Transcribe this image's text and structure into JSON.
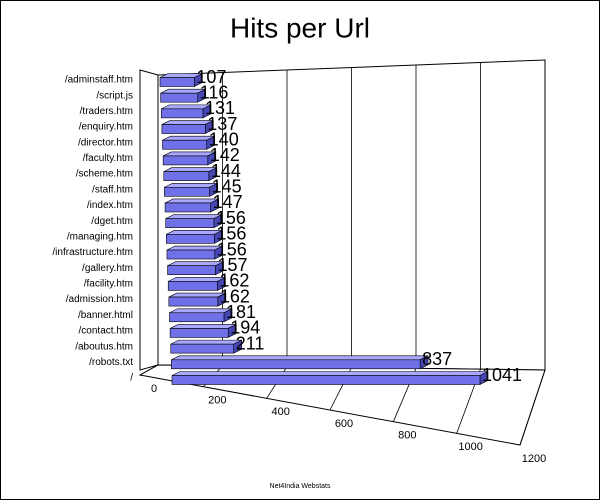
{
  "chart_data": {
    "type": "bar",
    "orientation": "horizontal",
    "title": "Hits per Url",
    "footer": "Net4India Webstats",
    "categories": [
      "/adminstaff.htm",
      "/script.js",
      "/traders.htm",
      "/enquiry.htm",
      "/director.htm",
      "/faculty.htm",
      "/scheme.htm",
      "/staff.htm",
      "/index.htm",
      "/dget.htm",
      "/managing.htm",
      "/infrastructure.htm",
      "/gallery.htm",
      "/facility.htm",
      "/admission.htm",
      "/banner.html",
      "/contact.htm",
      "/aboutus.htm",
      "/robots.txt",
      "/"
    ],
    "values": [
      107,
      116,
      131,
      137,
      140,
      142,
      144,
      145,
      147,
      156,
      156,
      156,
      157,
      162,
      162,
      181,
      194,
      211,
      837,
      1041
    ],
    "color": "#7070e8",
    "xlim": [
      0,
      1200
    ],
    "xticks": [
      0,
      200,
      400,
      600,
      800,
      1000,
      1200
    ],
    "grid": true
  }
}
